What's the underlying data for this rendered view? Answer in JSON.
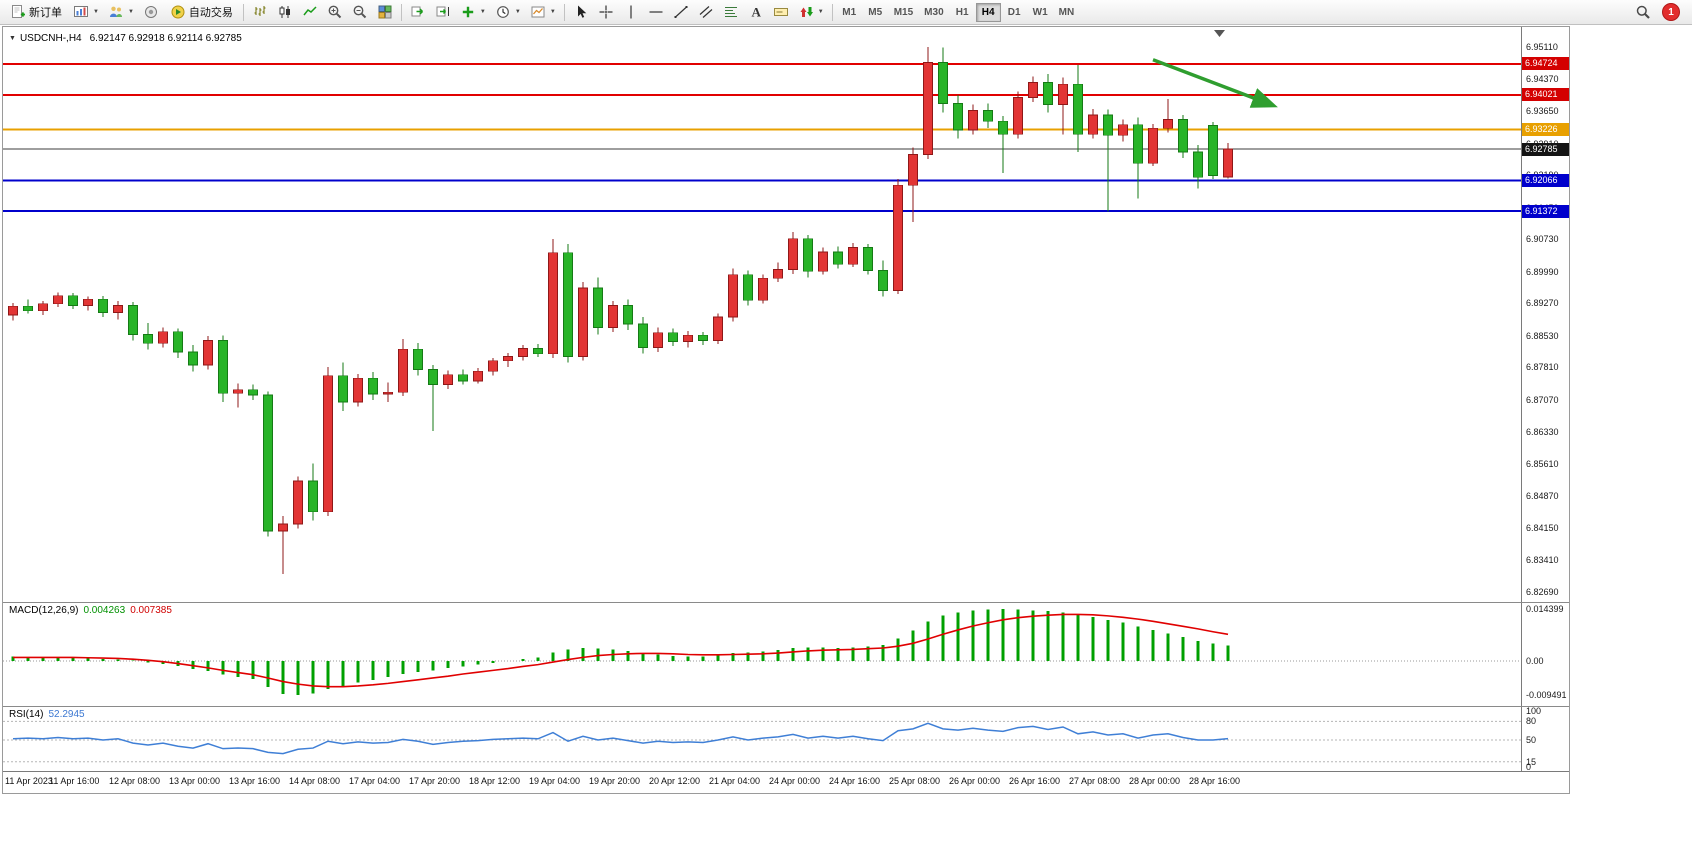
{
  "toolbar": {
    "new_order_label": "新订单",
    "auto_trading_label": "自动交易",
    "notification_count": "1",
    "timeframes": [
      {
        "label": "M1",
        "active": false
      },
      {
        "label": "M5",
        "active": false
      },
      {
        "label": "M15",
        "active": false
      },
      {
        "label": "M30",
        "active": false
      },
      {
        "label": "H1",
        "active": false
      },
      {
        "label": "H4",
        "active": true
      },
      {
        "label": "D1",
        "active": false
      },
      {
        "label": "W1",
        "active": false
      },
      {
        "label": "MN",
        "active": false
      }
    ]
  },
  "chart": {
    "symbol_label": "USDCNH-,H4",
    "ohlc": "6.92147 6.92918 6.92114 6.92785",
    "open": "6.92147",
    "high": "6.92918",
    "low": "6.92114",
    "close": "6.92785"
  },
  "price_axis": {
    "ticks": [
      "6.95110",
      "6.94370",
      "6.93650",
      "6.92910",
      "6.92190",
      "6.91450",
      "6.90730",
      "6.89990",
      "6.89270",
      "6.88530",
      "6.87810",
      "6.87070",
      "6.86330",
      "6.85610",
      "6.84870",
      "6.84150",
      "6.83410",
      "6.82690"
    ],
    "badges": [
      {
        "value": "6.94724",
        "bg": "#d40000",
        "role": "red-line-1"
      },
      {
        "value": "6.94021",
        "bg": "#d40000",
        "role": "red-line-2"
      },
      {
        "value": "6.93226",
        "bg": "#e8a000",
        "role": "orange-line"
      },
      {
        "value": "6.92785",
        "bg": "#141414",
        "role": "current-price"
      },
      {
        "value": "6.92066",
        "bg": "#0000cc",
        "role": "blue-line-1"
      },
      {
        "value": "6.91372",
        "bg": "#0000cc",
        "role": "blue-line-2"
      }
    ]
  },
  "macd_panel": {
    "label": "MACD(12,26,9)",
    "value_main": "0.004263",
    "value_signal": "0.007385",
    "axis": [
      "0.014399",
      "0.00",
      "-0.009491"
    ]
  },
  "rsi_panel": {
    "label": "RSI(14)",
    "value": "52.2945",
    "axis": [
      "100",
      "80",
      "50",
      "15",
      "0"
    ],
    "levels": [
      80,
      50,
      15
    ]
  },
  "time_axis": {
    "labels": [
      "11 Apr 2023",
      "11 Apr 16:00",
      "12 Apr 08:00",
      "13 Apr 00:00",
      "13 Apr 16:00",
      "14 Apr 08:00",
      "17 Apr 04:00",
      "17 Apr 20:00",
      "18 Apr 12:00",
      "19 Apr 04:00",
      "19 Apr 20:00",
      "20 Apr 12:00",
      "21 Apr 04:00",
      "24 Apr 00:00",
      "24 Apr 16:00",
      "25 Apr 08:00",
      "26 Apr 00:00",
      "26 Apr 16:00",
      "27 Apr 08:00",
      "28 Apr 00:00",
      "28 Apr 16:00"
    ]
  },
  "colors": {
    "bull": "#e23535",
    "bull_stroke": "#8f1818",
    "bear": "#28b428",
    "bear_stroke": "#157a15",
    "macd_hist": "#00a000",
    "macd_signal": "#e00000",
    "rsi_line": "#3f7fd6",
    "red_line": "#e10000",
    "orange_line": "#e8a000",
    "blue_line": "#0000cc",
    "current_price_line": "#3c3c3c"
  },
  "chart_data": {
    "type": "candlestick",
    "symbol": "USDCNH-",
    "timeframe": "H4",
    "ylim": [
      6.8269,
      6.9511
    ],
    "candles": [
      [
        6.89,
        6.8928,
        6.8888,
        6.892
      ],
      [
        6.892,
        6.8936,
        6.8904,
        6.891
      ],
      [
        6.891,
        6.8932,
        6.89,
        6.8926
      ],
      [
        6.8926,
        6.8952,
        6.8918,
        6.8944
      ],
      [
        6.8944,
        6.895,
        6.8914,
        6.8922
      ],
      [
        6.8922,
        6.8942,
        6.891,
        6.8936
      ],
      [
        6.8936,
        6.8944,
        6.8896,
        6.8906
      ],
      [
        6.8906,
        6.8932,
        6.889,
        6.8922
      ],
      [
        6.8922,
        6.893,
        6.8842,
        6.8856
      ],
      [
        6.8856,
        6.8882,
        6.8822,
        6.8836
      ],
      [
        6.8836,
        6.8872,
        6.8826,
        6.8862
      ],
      [
        6.8862,
        6.887,
        6.8802,
        6.8816
      ],
      [
        6.8816,
        6.8832,
        6.8772,
        6.8786
      ],
      [
        6.8786,
        6.8852,
        6.8776,
        6.8842
      ],
      [
        6.8842,
        6.8854,
        6.8702,
        6.8722
      ],
      [
        6.8722,
        6.8744,
        6.869,
        6.873
      ],
      [
        6.873,
        6.8742,
        6.8706,
        6.8718
      ],
      [
        6.8718,
        6.8726,
        6.8395,
        6.8408
      ],
      [
        6.8408,
        6.8442,
        6.831,
        6.8424
      ],
      [
        6.8424,
        6.8532,
        6.8414,
        6.8522
      ],
      [
        6.8522,
        6.8562,
        6.8432,
        6.8452
      ],
      [
        6.8452,
        6.8782,
        6.8442,
        6.8762
      ],
      [
        6.8762,
        6.8792,
        6.8682,
        6.8702
      ],
      [
        6.8702,
        6.8766,
        6.8692,
        6.8756
      ],
      [
        6.8756,
        6.877,
        6.8706,
        6.872
      ],
      [
        6.872,
        6.8746,
        6.8702,
        6.8724
      ],
      [
        6.8724,
        6.8846,
        6.8716,
        6.8822
      ],
      [
        6.8822,
        6.8836,
        6.8762,
        6.8776
      ],
      [
        6.8776,
        6.8786,
        6.8636,
        6.8742
      ],
      [
        6.8742,
        6.8774,
        6.8732,
        6.8764
      ],
      [
        6.8764,
        6.8776,
        6.8742,
        6.875
      ],
      [
        6.875,
        6.878,
        6.8744,
        6.8772
      ],
      [
        6.8772,
        6.8802,
        6.8762,
        6.8796
      ],
      [
        6.8796,
        6.8814,
        6.8782,
        6.8806
      ],
      [
        6.8806,
        6.8832,
        6.8796,
        6.8824
      ],
      [
        6.8824,
        6.8834,
        6.8804,
        6.8812
      ],
      [
        6.8812,
        6.9073,
        6.8802,
        6.9042
      ],
      [
        6.9042,
        6.9062,
        6.8792,
        6.8806
      ],
      [
        6.8806,
        6.8976,
        6.8796,
        6.8962
      ],
      [
        6.8962,
        6.8986,
        6.8856,
        6.8872
      ],
      [
        6.8872,
        6.8932,
        6.8862,
        6.8922
      ],
      [
        6.8922,
        6.8936,
        6.8866,
        6.888
      ],
      [
        6.888,
        6.8896,
        6.8812,
        6.8826
      ],
      [
        6.8826,
        6.8872,
        6.8816,
        6.886
      ],
      [
        6.886,
        6.887,
        6.883,
        6.884
      ],
      [
        6.884,
        6.8864,
        6.8826,
        6.8854
      ],
      [
        6.8854,
        6.8862,
        6.8832,
        6.8842
      ],
      [
        6.8842,
        6.8904,
        6.8834,
        6.8896
      ],
      [
        6.8896,
        6.9006,
        6.8886,
        6.8992
      ],
      [
        6.8992,
        6.9002,
        6.8922,
        6.8934
      ],
      [
        6.8934,
        6.8992,
        6.8926,
        6.8984
      ],
      [
        6.8984,
        6.902,
        6.8976,
        6.9004
      ],
      [
        6.9004,
        6.9089,
        6.8994,
        6.9074
      ],
      [
        6.9074,
        6.9082,
        6.8986,
        6.9
      ],
      [
        6.9,
        6.9054,
        6.8992,
        6.9044
      ],
      [
        6.9044,
        6.9056,
        6.9006,
        6.9016
      ],
      [
        6.9016,
        6.9064,
        6.901,
        6.9054
      ],
      [
        6.9054,
        6.9062,
        6.8992,
        6.9002
      ],
      [
        6.9002,
        6.9024,
        6.8942,
        6.8956
      ],
      [
        6.8956,
        6.921,
        6.8948,
        6.9196
      ],
      [
        6.9196,
        6.9282,
        6.9112,
        6.9266
      ],
      [
        6.9266,
        6.9511,
        6.9256,
        6.9476
      ],
      [
        6.9476,
        6.951,
        6.9362,
        6.9382
      ],
      [
        6.9382,
        6.9402,
        6.9302,
        6.9322
      ],
      [
        6.9322,
        6.938,
        6.9312,
        6.9366
      ],
      [
        6.9366,
        6.9382,
        6.9326,
        6.9342
      ],
      [
        6.9342,
        6.9354,
        6.9224,
        6.9312
      ],
      [
        6.9312,
        6.941,
        6.9302,
        6.9396
      ],
      [
        6.9396,
        6.9444,
        6.9386,
        6.943
      ],
      [
        6.943,
        6.945,
        6.9362,
        6.938
      ],
      [
        6.938,
        6.9442,
        6.9312,
        6.9426
      ],
      [
        6.9426,
        6.947,
        6.9272,
        6.9312
      ],
      [
        6.9312,
        6.937,
        6.9302,
        6.9356
      ],
      [
        6.9356,
        6.9368,
        6.9136,
        6.931
      ],
      [
        6.931,
        6.9346,
        6.9296,
        6.9334
      ],
      [
        6.9334,
        6.935,
        6.9166,
        6.9246
      ],
      [
        6.9246,
        6.9336,
        6.924,
        6.9326
      ],
      [
        6.9326,
        6.9392,
        6.9316,
        6.9346
      ],
      [
        6.9346,
        6.9356,
        6.9258,
        6.9272
      ],
      [
        6.9272,
        6.9288,
        6.9188,
        6.9214
      ],
      [
        6.9332,
        6.934,
        6.921,
        6.9218
      ],
      [
        6.92147,
        6.92918,
        6.92114,
        6.92785
      ]
    ],
    "hlines": [
      {
        "price": 6.94724,
        "color": "#e10000",
        "width": 2,
        "role": "red-line-1"
      },
      {
        "price": 6.94021,
        "color": "#e10000",
        "width": 2,
        "role": "red-line-2"
      },
      {
        "price": 6.93226,
        "color": "#e8a000",
        "width": 2,
        "role": "orange-line"
      },
      {
        "price": 6.92785,
        "color": "#3c3c3c",
        "width": 1,
        "role": "current-price-line"
      },
      {
        "price": 6.92066,
        "color": "#0000cc",
        "width": 2,
        "role": "blue-line-1"
      },
      {
        "price": 6.91372,
        "color": "#0000cc",
        "width": 2,
        "role": "blue-line-2"
      }
    ],
    "arrow": {
      "from": {
        "bar": 76,
        "price": 6.9482
      },
      "to": {
        "bar": 84,
        "price": 6.9378
      },
      "color": "#2f9e2f"
    },
    "macd": {
      "ylim": [
        -0.009491,
        0.014399
      ],
      "histogram": [
        0.0012,
        0.0011,
        0.001,
        0.0011,
        0.0009,
        0.0008,
        0.0006,
        0.0004,
        0.0001,
        -0.0004,
        -0.0008,
        -0.0014,
        -0.0022,
        -0.0028,
        -0.0038,
        -0.0044,
        -0.005,
        -0.0072,
        -0.0092,
        -0.0094,
        -0.009,
        -0.0078,
        -0.007,
        -0.006,
        -0.0052,
        -0.0044,
        -0.0036,
        -0.003,
        -0.0026,
        -0.002,
        -0.0015,
        -0.001,
        -0.0005,
        0.0,
        0.0006,
        0.001,
        0.0024,
        0.0032,
        0.0036,
        0.0034,
        0.0032,
        0.0028,
        0.0022,
        0.0018,
        0.0014,
        0.0012,
        0.0012,
        0.0016,
        0.0022,
        0.0024,
        0.0026,
        0.003,
        0.0036,
        0.0038,
        0.0038,
        0.0036,
        0.0038,
        0.004,
        0.0044,
        0.0062,
        0.0084,
        0.011,
        0.0126,
        0.0134,
        0.014,
        0.0142,
        0.0144,
        0.0142,
        0.014,
        0.0138,
        0.0134,
        0.0128,
        0.0122,
        0.0114,
        0.0106,
        0.0096,
        0.0086,
        0.0076,
        0.0066,
        0.0056,
        0.0048,
        0.004263
      ],
      "signal": [
        0.001,
        0.001,
        0.001,
        0.001,
        0.001,
        0.0009,
        0.0008,
        0.0007,
        0.0005,
        0.0002,
        -0.0002,
        -0.0007,
        -0.0013,
        -0.0019,
        -0.0026,
        -0.0032,
        -0.0038,
        -0.0047,
        -0.0057,
        -0.0064,
        -0.0069,
        -0.0071,
        -0.0071,
        -0.0069,
        -0.0066,
        -0.0062,
        -0.0057,
        -0.0052,
        -0.0047,
        -0.0042,
        -0.0036,
        -0.0031,
        -0.0026,
        -0.0021,
        -0.0015,
        -0.001,
        -0.0003,
        0.0004,
        0.001,
        0.0015,
        0.0018,
        0.002,
        0.0021,
        0.0021,
        0.002,
        0.0018,
        0.0017,
        0.0017,
        0.0018,
        0.0019,
        0.002,
        0.0022,
        0.0025,
        0.0028,
        0.003,
        0.0031,
        0.0032,
        0.0034,
        0.0036,
        0.0041,
        0.0049,
        0.0061,
        0.0074,
        0.0086,
        0.0097,
        0.0106,
        0.0114,
        0.012,
        0.0124,
        0.0127,
        0.0129,
        0.0129,
        0.0128,
        0.0125,
        0.0121,
        0.0116,
        0.011,
        0.0103,
        0.0096,
        0.0089,
        0.0081,
        0.007385
      ]
    },
    "rsi": {
      "ylim": [
        0,
        100
      ],
      "values": [
        52,
        53,
        52,
        54,
        52,
        53,
        50,
        52,
        45,
        42,
        45,
        40,
        37,
        44,
        36,
        37,
        36,
        30,
        28,
        35,
        37,
        48,
        44,
        47,
        45,
        46,
        51,
        48,
        43,
        46,
        48,
        49,
        51,
        52,
        53,
        52,
        62,
        48,
        56,
        50,
        53,
        49,
        45,
        48,
        46,
        47,
        46,
        50,
        55,
        50,
        53,
        55,
        59,
        53,
        56,
        53,
        56,
        52,
        49,
        65,
        68,
        77,
        68,
        66,
        69,
        66,
        64,
        70,
        72,
        67,
        71,
        60,
        63,
        58,
        60,
        53,
        58,
        60,
        54,
        50,
        50,
        52.29
      ]
    }
  }
}
